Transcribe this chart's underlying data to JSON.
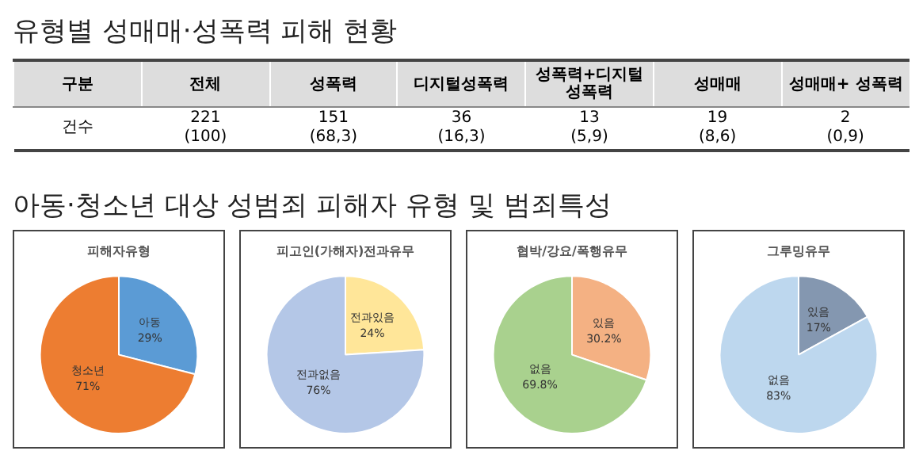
{
  "chart_data": [
    {
      "type": "other",
      "title": "유형별 성매매·성폭력 피해 현황",
      "xlabel": "구분",
      "ylabel": "건수",
      "categories": [
        "전체",
        "성폭력",
        "디지털성폭력",
        "성폭력+디지털 성폭력",
        "성매매",
        "성매매+ 성폭력"
      ],
      "values": [
        221,
        151,
        36,
        13,
        19,
        2
      ],
      "value_labels": [
        "221\n(100)",
        "151\n(68,3)",
        "36\n(16,3)",
        "13\n(5,9)",
        "19\n(8,6)",
        "2\n(0,9)"
      ]
    },
    {
      "type": "other",
      "title": "아동·청소년 대상 성범죄 피해자 유형 및 범죄특성"
    },
    {
      "type": "pie",
      "title": "피해자유형",
      "categories": [
        "아동",
        "청소년"
      ],
      "values": [
        29,
        71
      ],
      "colors": [
        "#5b9bd5",
        "#ed7d31"
      ],
      "value_labels": [
        "29%",
        "71%"
      ]
    },
    {
      "type": "pie",
      "title": "피고인(가해자)전과유무",
      "categories": [
        "전과있음",
        "전과없음"
      ],
      "values": [
        24,
        76
      ],
      "colors": [
        "#ffe699",
        "#b4c7e7"
      ],
      "value_labels": [
        "24%",
        "76%"
      ]
    },
    {
      "type": "pie",
      "title": "협박/강요/폭행유무",
      "categories": [
        "있음",
        "없음"
      ],
      "values": [
        30.2,
        69.8
      ],
      "colors": [
        "#f4b183",
        "#a9d18e"
      ],
      "value_labels": [
        "30.2%",
        "69.8%"
      ]
    },
    {
      "type": "pie",
      "title": "그루밍유무",
      "categories": [
        "있음",
        "없음"
      ],
      "values": [
        17,
        83
      ],
      "colors": [
        "#8497b0",
        "#bdd7ee"
      ],
      "value_labels": [
        "17%",
        "83%"
      ]
    }
  ]
}
